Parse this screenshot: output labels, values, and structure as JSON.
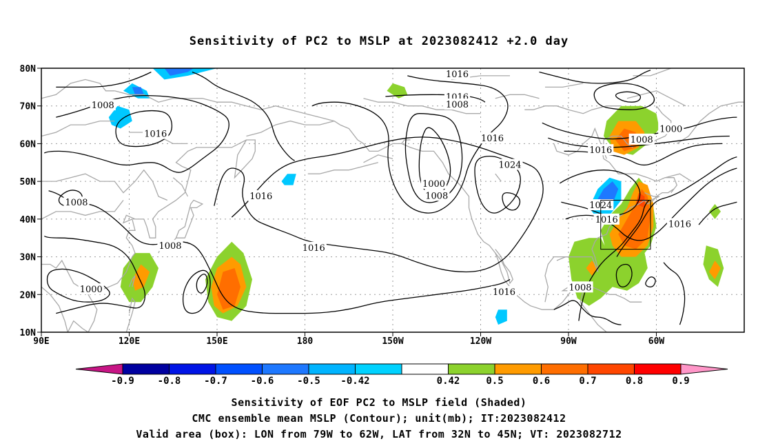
{
  "title": "Sensitivity of PC2 to MSLP at 2023082412 +2.0 day",
  "map": {
    "lat_labels": [
      "80N",
      "70N",
      "60N",
      "50N",
      "40N",
      "30N",
      "20N",
      "10N"
    ],
    "lon_labels": [
      "90E",
      "120E",
      "150E",
      "180",
      "150W",
      "120W",
      "90W",
      "60W"
    ],
    "contour_labels": [
      {
        "text": "1016",
        "lon": 232,
        "lat": 78.5
      },
      {
        "text": "1016",
        "lon": 232,
        "lat": 72.5
      },
      {
        "text": "1008",
        "lon": 232,
        "lat": 70.5
      },
      {
        "text": "1008",
        "lon": 111,
        "lat": 70.3
      },
      {
        "text": "1016",
        "lon": 129,
        "lat": 62.7
      },
      {
        "text": "1016",
        "lon": 244,
        "lat": 61.5
      },
      {
        "text": "1024",
        "lon": 250,
        "lat": 54.5
      },
      {
        "text": "1000",
        "lon": 224,
        "lat": 49.5
      },
      {
        "text": "1008",
        "lon": 225,
        "lat": 46.3
      },
      {
        "text": "1016",
        "lon": 165,
        "lat": 46.2
      },
      {
        "text": "1008",
        "lon": 102,
        "lat": 44.5
      },
      {
        "text": "1016",
        "lon": 183,
        "lat": 32.5
      },
      {
        "text": "1008",
        "lon": 134,
        "lat": 33.0
      },
      {
        "text": "1016",
        "lon": 248,
        "lat": 20.8
      },
      {
        "text": "1000",
        "lon": 107,
        "lat": 21.5
      },
      {
        "text": "1008",
        "lon": 274,
        "lat": 22.0
      },
      {
        "text": "1016",
        "lon": 281,
        "lat": 58.4
      },
      {
        "text": "1024",
        "lon": 281,
        "lat": 43.8
      },
      {
        "text": "1016",
        "lon": 283,
        "lat": 40.0
      },
      {
        "text": "1008",
        "lon": 295,
        "lat": 61.2
      },
      {
        "text": "1000",
        "lon": 305,
        "lat": 64.0
      },
      {
        "text": "1016",
        "lon": 308,
        "lat": 38.8
      }
    ],
    "valid_box": {
      "lon_west": 281,
      "lon_east": 298,
      "lat_south": 32,
      "lat_north": 45
    }
  },
  "colorbar": {
    "labels": [
      "-0.9",
      "-0.8",
      "-0.7",
      "-0.6",
      "-0.5",
      "-0.42",
      "0.42",
      "0.5",
      "0.6",
      "0.7",
      "0.8",
      "0.9"
    ],
    "colors": [
      "#c71585",
      "#0000a0",
      "#0014e6",
      "#0050ff",
      "#1e78ff",
      "#00b4ff",
      "#00d2ff",
      "#ffffff",
      "#8cd22d",
      "#ff9b00",
      "#ff6e00",
      "#ff4600",
      "#ff0000",
      "#ff96c8"
    ]
  },
  "footer": {
    "line1": "Sensitivity of EOF PC2 to MSLP field (Shaded)",
    "line2": "CMC ensemble mean MSLP (Contour); unit(mb); IT:2023082412",
    "line3": "Valid area (box): LON from 79W to 62W, LAT from 32N to 45N; VT: 2023082712"
  },
  "colors": {
    "frame": "#000000",
    "coast": "#a8a8a8",
    "grid": "#9a9a9a",
    "contour": "#000000",
    "green": "#8cd22d",
    "orange": "#ff9b00",
    "dark_orange": "#ff6e00",
    "red_orange": "#ff4600",
    "light_blue": "#00c8ff",
    "blue": "#1e78ff"
  }
}
